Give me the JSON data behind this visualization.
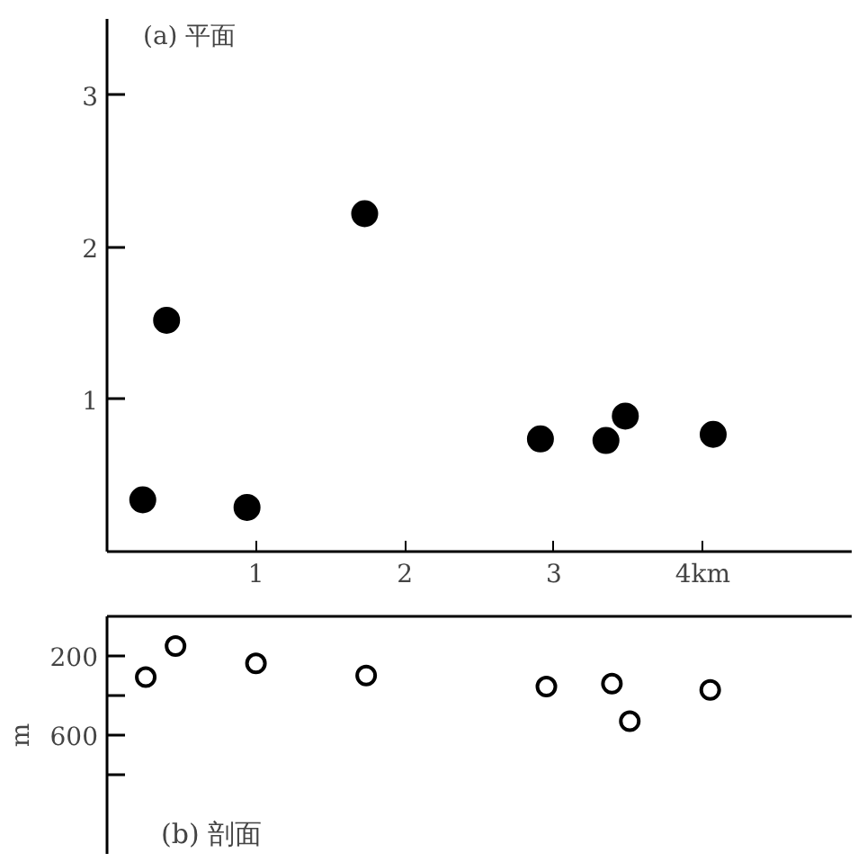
{
  "chart_data": [
    {
      "type": "scatter",
      "x": [
        0.24,
        0.4,
        0.94,
        1.73,
        2.91,
        3.35,
        3.48,
        4.07
      ],
      "values": [
        0.34,
        1.52,
        0.29,
        2.22,
        0.74,
        0.73,
        0.89,
        0.77
      ],
      "color": "#000000",
      "marker": "circle",
      "xlim": [
        0,
        5
      ],
      "ylim": [
        0,
        3.5
      ],
      "xticks": [
        1,
        2,
        3,
        {
          "value": 4,
          "label": "4km"
        }
      ],
      "yticks": [
        1,
        2,
        3
      ],
      "grid": false,
      "annotations": [
        "(a) 平面"
      ]
    },
    {
      "type": "scatter",
      "x": [
        0.26,
        0.46,
        1.0,
        1.74,
        2.95,
        3.39,
        3.51,
        4.05
      ],
      "values": [
        307,
        150,
        238,
        299,
        355,
        340,
        530,
        372
      ],
      "color": "#000000",
      "marker": "circle",
      "xlim": [
        0,
        5
      ],
      "ylim": [
        1200,
        0
      ],
      "yticks": [
        200,
        {
          "value": 400,
          "label": null
        },
        600,
        {
          "value": 800,
          "label": null
        }
      ],
      "ylabel": "m",
      "tick_labels": "y",
      "grid": false,
      "annotations": [
        "(b) 剖面"
      ]
    }
  ]
}
